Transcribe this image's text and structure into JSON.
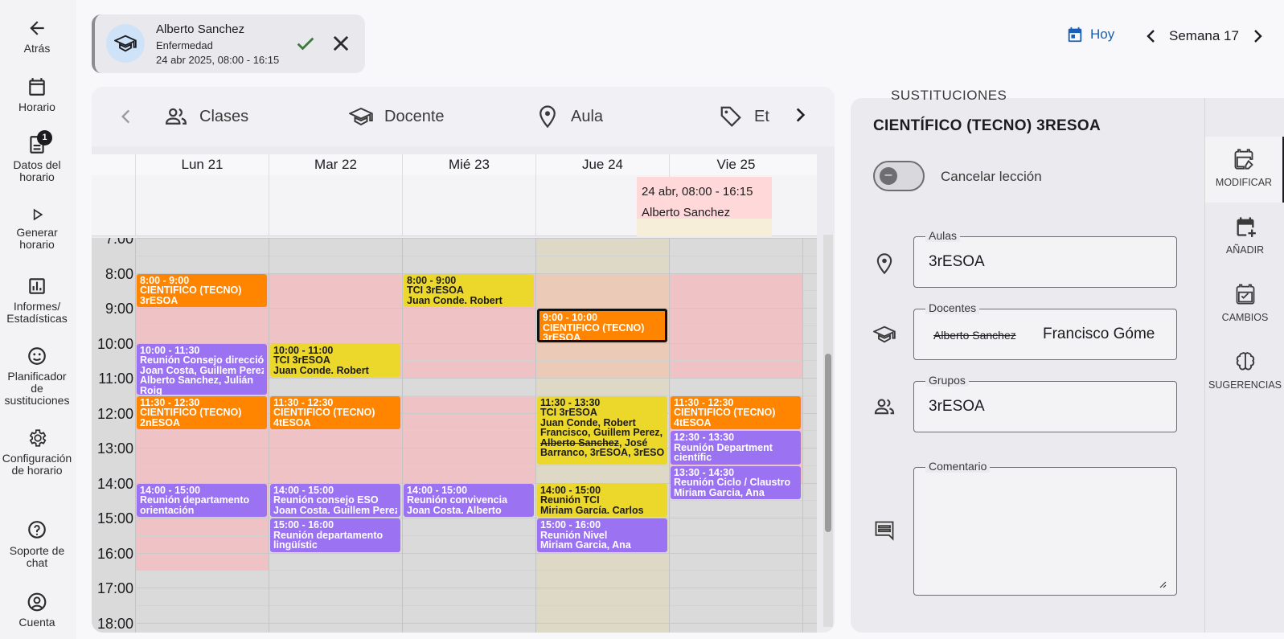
{
  "nav": {
    "back": "Atrás",
    "schedule": "Horario",
    "schedule_data": "Datos del horario",
    "schedule_data_badge": "1",
    "generate": "Generar horario",
    "reports": "Informes/ Estadísticas",
    "planner": "Planificador de sustituciones",
    "config": "Configuración de horario",
    "support": "Soporte de chat",
    "account": "Cuenta"
  },
  "absence": {
    "name": "Alberto Sanchez",
    "reason": "Enfermedad",
    "time": "24 abr 2025, 08:00 - 16:15"
  },
  "week_nav": {
    "today": "Hoy",
    "week": "Semana 17"
  },
  "tabs": {
    "classes": "Clases",
    "teacher": "Docente",
    "room": "Aula",
    "tags": "Et"
  },
  "days": [
    "Lun 21",
    "Mar 22",
    "Mié 23",
    "Jue 24",
    "Vie 25"
  ],
  "allday_event": {
    "time": "24 abr, 08:00 - 16:15",
    "name": "Alberto Sanchez"
  },
  "hours": [
    "7:00",
    "8:00",
    "9:00",
    "10:00",
    "11:00",
    "12:00",
    "13:00",
    "14:00",
    "15:00",
    "16:00",
    "17:00",
    "18:00"
  ],
  "events": [
    {
      "day": 0,
      "start": 8.0,
      "end": 9.0,
      "color": "orange",
      "lines": [
        "8:00 - 9:00",
        "CIENTIFICO (TECNO)",
        "3rESOA"
      ]
    },
    {
      "day": 0,
      "start": 10.0,
      "end": 11.5,
      "color": "purple",
      "lines": [
        "10:00 - 11:30",
        "Reunión Consejo dirección",
        "Joan Costa, Guillem Perez,",
        "Alberto Sanchez, Julián",
        "Roig"
      ]
    },
    {
      "day": 0,
      "start": 11.5,
      "end": 12.5,
      "color": "orange",
      "lines": [
        "11:30 - 12:30",
        "CIENTIFICO (TECNO)",
        "2nESOA"
      ]
    },
    {
      "day": 0,
      "start": 14.0,
      "end": 15.0,
      "color": "purple",
      "lines": [
        "14:00 - 15:00",
        "Reunión departamento",
        "orientación"
      ]
    },
    {
      "day": 1,
      "start": 10.0,
      "end": 11.0,
      "color": "yellow",
      "lines": [
        "10:00 - 11:00",
        "TCI 3rESOA",
        "Juan Conde. Robert"
      ]
    },
    {
      "day": 1,
      "start": 11.5,
      "end": 12.5,
      "color": "orange",
      "lines": [
        "11:30 - 12:30",
        "CIENTIFICO (TECNO)",
        "4tESOA"
      ]
    },
    {
      "day": 1,
      "start": 14.0,
      "end": 15.0,
      "color": "purple",
      "lines": [
        "14:00 - 15:00",
        "Reunión consejo ESO",
        "Joan Costa. Guillem Perez."
      ]
    },
    {
      "day": 1,
      "start": 15.0,
      "end": 16.0,
      "color": "purple",
      "lines": [
        "15:00 - 16:00",
        "Reunión departamento",
        "lingüístic"
      ]
    },
    {
      "day": 2,
      "start": 8.0,
      "end": 9.0,
      "color": "yellow",
      "lines": [
        "8:00 - 9:00",
        "TCI 3rESOA",
        "Juan Conde. Robert"
      ]
    },
    {
      "day": 2,
      "start": 14.0,
      "end": 15.0,
      "color": "purple",
      "lines": [
        "14:00 - 15:00",
        "Reunión convivencia",
        "Joan Costa. Alberto"
      ]
    },
    {
      "day": 3,
      "start": 9.0,
      "end": 10.0,
      "color": "orange",
      "selected": true,
      "lines": [
        "9:00 - 10:00",
        "CIENTIFICO (TECNO)",
        "3rESOA"
      ]
    },
    {
      "day": 3,
      "start": 11.5,
      "end": 13.5,
      "color": "yellow",
      "lines": [
        "11:30 - 13:30",
        "TCI 3rESOA",
        "Juan Conde, Robert",
        "Francisco, Guillem Perez,",
        "Barranco, 3rESOA, 3rESOA"
      ],
      "strike_line": {
        "text": "Alberto Sanchez",
        "rest": ", José"
      }
    },
    {
      "day": 3,
      "start": 14.0,
      "end": 15.0,
      "color": "yellow",
      "lines": [
        "14:00 - 15:00",
        "Reunión TCI",
        "Miriam García. Carlos"
      ]
    },
    {
      "day": 3,
      "start": 15.0,
      "end": 16.0,
      "color": "purple",
      "lines": [
        "15:00 - 16:00",
        "Reunión Nivel",
        "Miriam Garcia, Ana"
      ]
    },
    {
      "day": 4,
      "start": 11.5,
      "end": 12.5,
      "color": "orange",
      "lines": [
        "11:30 - 12:30",
        "CIENTIFICO (TECNO)",
        "4tESOA"
      ]
    },
    {
      "day": 4,
      "start": 12.5,
      "end": 13.5,
      "color": "purple",
      "lines": [
        "12:30 - 13:30",
        "Reunión Department",
        "científic"
      ]
    },
    {
      "day": 4,
      "start": 13.5,
      "end": 14.5,
      "color": "purple",
      "lines": [
        "13:30 - 14:30",
        "Reunión Ciclo / Claustro",
        "Miriam Garcia, Ana"
      ]
    }
  ],
  "substitution": {
    "section_title": "SUSTITUCIONES",
    "lesson_title": "CIENTÍFICO (TECNO) 3RESOA",
    "cancel_label": "Cancelar lección",
    "rooms_label": "Aulas",
    "rooms_value": "3rESOA",
    "teachers_label": "Docentes",
    "teacher_removed": "Alberto Sanchez",
    "teacher_added": "Francisco Góme",
    "groups_label": "Grupos",
    "groups_value": "3rESOA",
    "comment_label": "Comentario",
    "comment_value": ""
  },
  "side_tabs": {
    "modify": "MODIFICAR",
    "add": "AÑADIR",
    "changes": "CAMBIOS",
    "suggestions": "SUGERENCIAS"
  },
  "colors": {
    "accent": "#1a5fb4",
    "orange": "#ff8400",
    "yellow": "#ecd82a",
    "purple": "#9b73f2",
    "unavailable": "#efc3c5"
  }
}
